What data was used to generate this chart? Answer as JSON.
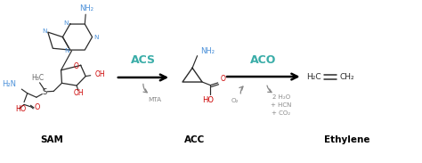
{
  "bg_color": "#ffffff",
  "fig_width": 4.74,
  "fig_height": 1.83,
  "dpi": 100,
  "sam_label": "SAM",
  "acc_label": "ACC",
  "ethylene_label": "Ethylene",
  "acs_label": "ACS",
  "aco_label": "ACO",
  "mta_label": "MTA",
  "byproducts_line1": "2 H₂O",
  "byproducts_line2": "+ HCN",
  "byproducts_line3": "+ CO₂",
  "o2_label": "O₂",
  "nh2_color": "#4a90d9",
  "enzyme_color": "#3aada8",
  "red_color": "#cc0000",
  "dark_color": "#2a2a2a",
  "gray_color": "#888888",
  "black": "#000000",
  "methyl_color": "#666666"
}
